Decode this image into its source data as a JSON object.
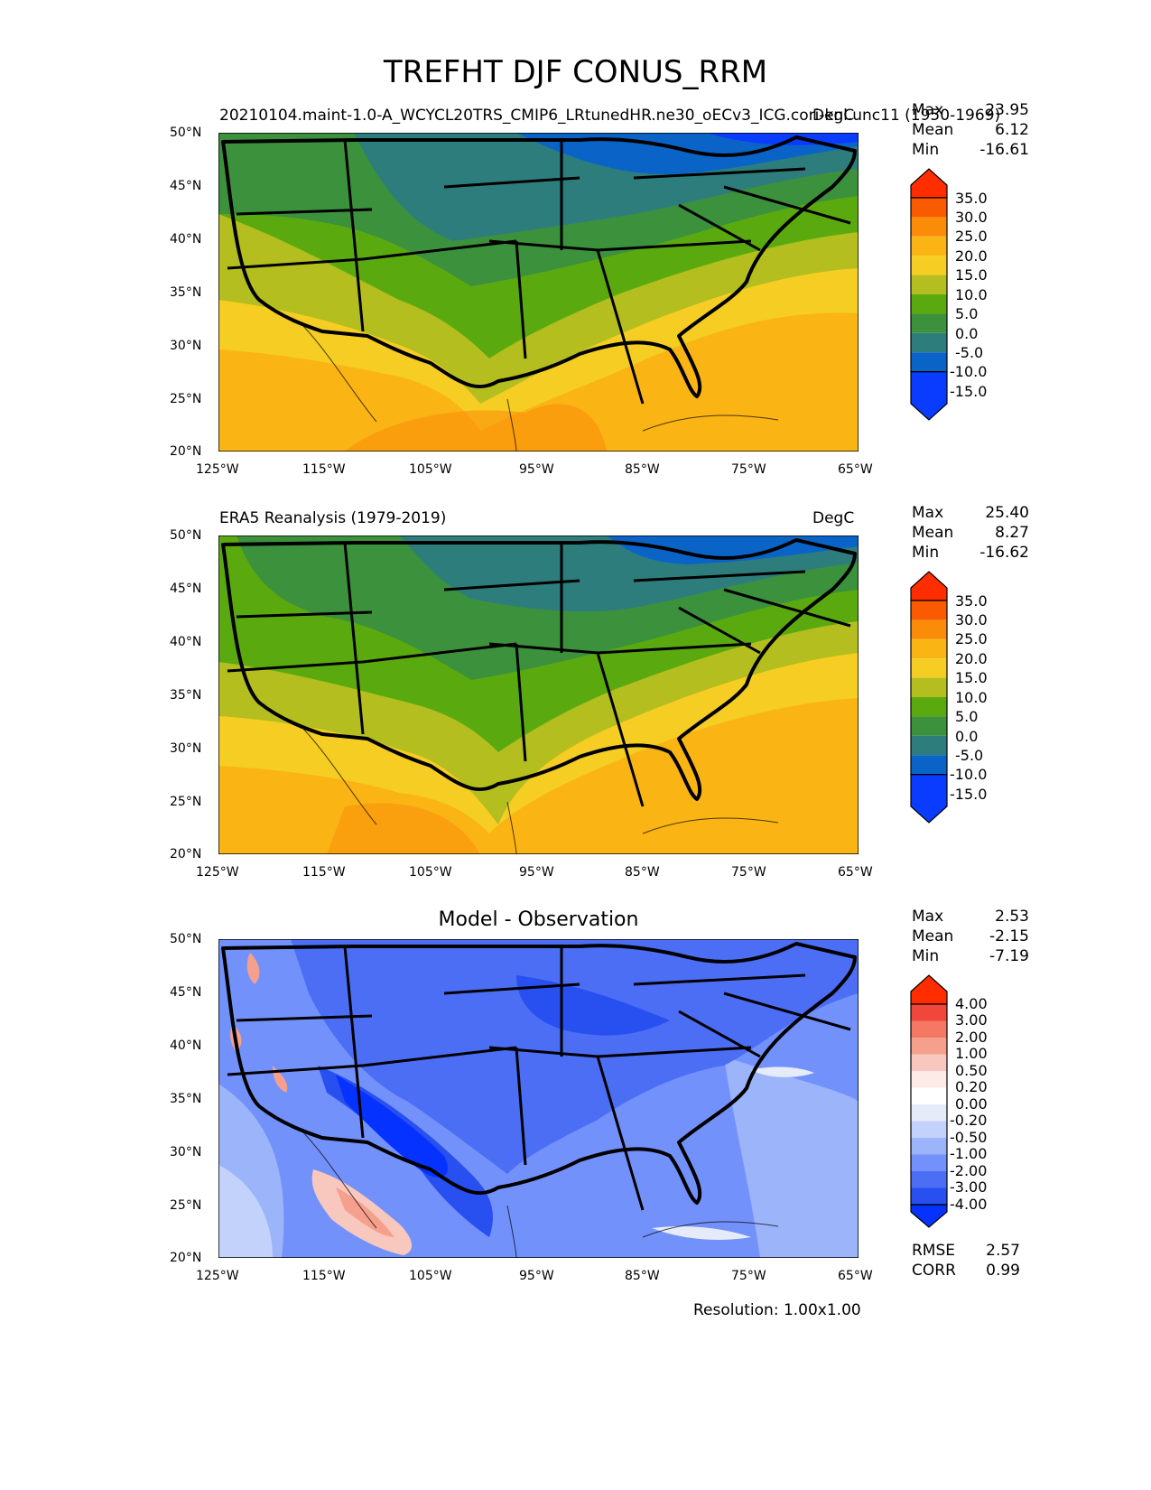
{
  "figure": {
    "title": "TREFHT DJF CONUS_RRM",
    "resolution": "Resolution: 1.00x1.00"
  },
  "axes": {
    "lat_ticks": [
      "50°N",
      "45°N",
      "40°N",
      "35°N",
      "30°N",
      "25°N",
      "20°N"
    ],
    "lon_ticks": [
      "125°W",
      "115°W",
      "105°W",
      "95°W",
      "85°W",
      "75°W",
      "65°W"
    ]
  },
  "panels": [
    {
      "left_title": "20210104.maint-1.0-A_WCYCL20TRS_CMIP6_LRtunedHR.ne30_oECv3_ICG.cori-knl.unc11 (1950-1969)",
      "right_title": "DegC",
      "stats": {
        "max_label": "Max",
        "max": "23.95",
        "mean_label": "Mean",
        "mean": "6.12",
        "min_label": "Min",
        "min": "-16.61"
      },
      "colorbar_labels": [
        "35.0",
        "30.0",
        "25.0",
        "20.0",
        "15.0",
        "10.0",
        "5.0",
        "0.0",
        "-5.0",
        "-10.0",
        "-15.0"
      ]
    },
    {
      "left_title": "ERA5 Reanalysis (1979-2019)",
      "right_title": "DegC",
      "stats": {
        "max_label": "Max",
        "max": "25.40",
        "mean_label": "Mean",
        "mean": "8.27",
        "min_label": "Min",
        "min": "-16.62"
      },
      "colorbar_labels": [
        "35.0",
        "30.0",
        "25.0",
        "20.0",
        "15.0",
        "10.0",
        "5.0",
        "0.0",
        "-5.0",
        "-10.0",
        "-15.0"
      ]
    },
    {
      "center_title": "Model - Observation",
      "stats": {
        "max_label": "Max",
        "max": "2.53",
        "mean_label": "Mean",
        "mean": "-2.15",
        "min_label": "Min",
        "min": "-7.19"
      },
      "colorbar_labels": [
        "4.00",
        "3.00",
        "2.00",
        "1.00",
        "0.50",
        "0.20",
        "0.00",
        "-0.20",
        "-0.50",
        "-1.00",
        "-2.00",
        "-3.00",
        "-4.00"
      ],
      "metrics": {
        "rmse_label": "RMSE",
        "rmse": "2.57",
        "corr_label": "CORR",
        "corr": "0.99"
      }
    }
  ],
  "colors": {
    "temp_scale": [
      "#0a3cff",
      "#0a64c8",
      "#2d7d7d",
      "#3c913c",
      "#5aaa0f",
      "#b4be1e",
      "#f5cd23",
      "#fab414",
      "#fa8c0a",
      "#fa5a00",
      "#ff2d00"
    ],
    "diff_scale": [
      "#0532ff",
      "#2850f0",
      "#4b6ef5",
      "#7391fa",
      "#9bb4fa",
      "#c3d2fa",
      "#e6ebfa",
      "#fcebe6",
      "#f8c8be",
      "#f5a08c",
      "#f57864",
      "#f0463c",
      "#ff2d00"
    ]
  }
}
